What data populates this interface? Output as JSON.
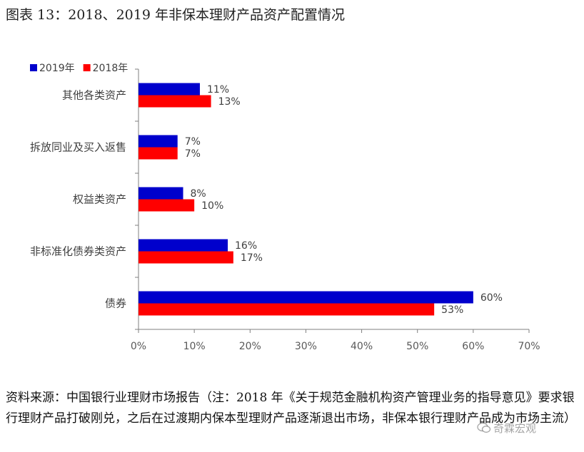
{
  "figure": {
    "title": "图表 13：2018、2019 年非保本理财产品资产配置情况",
    "source_note": "资料来源：中国银行业理财市场报告（注：2018 年《关于规范金融机构资产管理业务的指导意见》要求银行理财产品打破刚兑，之后在过渡期内保本型理财产品逐渐退出市场，非保本银行理财产品成为市场主流）",
    "watermark": "奇霖宏观"
  },
  "chart_data": {
    "type": "bar",
    "orientation": "horizontal",
    "title": "",
    "xlabel": "",
    "ylabel": "",
    "categories": [
      "其他各类资产",
      "拆放同业及买入返售",
      "权益类资产",
      "非标准化债券类资产",
      "债券"
    ],
    "series": [
      {
        "name": "2019年",
        "color": "#0000CC",
        "values": [
          11,
          7,
          8,
          16,
          60
        ],
        "labels": [
          "11%",
          "7%",
          "8%",
          "16%",
          "60%"
        ]
      },
      {
        "name": "2018年",
        "color": "#FF0000",
        "values": [
          13,
          7,
          10,
          17,
          53
        ],
        "labels": [
          "13%",
          "7%",
          "10%",
          "17%",
          "53%"
        ]
      }
    ],
    "xlim": [
      0,
      70
    ],
    "xticks": [
      0,
      10,
      20,
      30,
      40,
      50,
      60,
      70
    ],
    "xtick_labels": [
      "0%",
      "10%",
      "20%",
      "30%",
      "40%",
      "50%",
      "60%",
      "70%"
    ],
    "grid": false,
    "legend": "top-left"
  }
}
